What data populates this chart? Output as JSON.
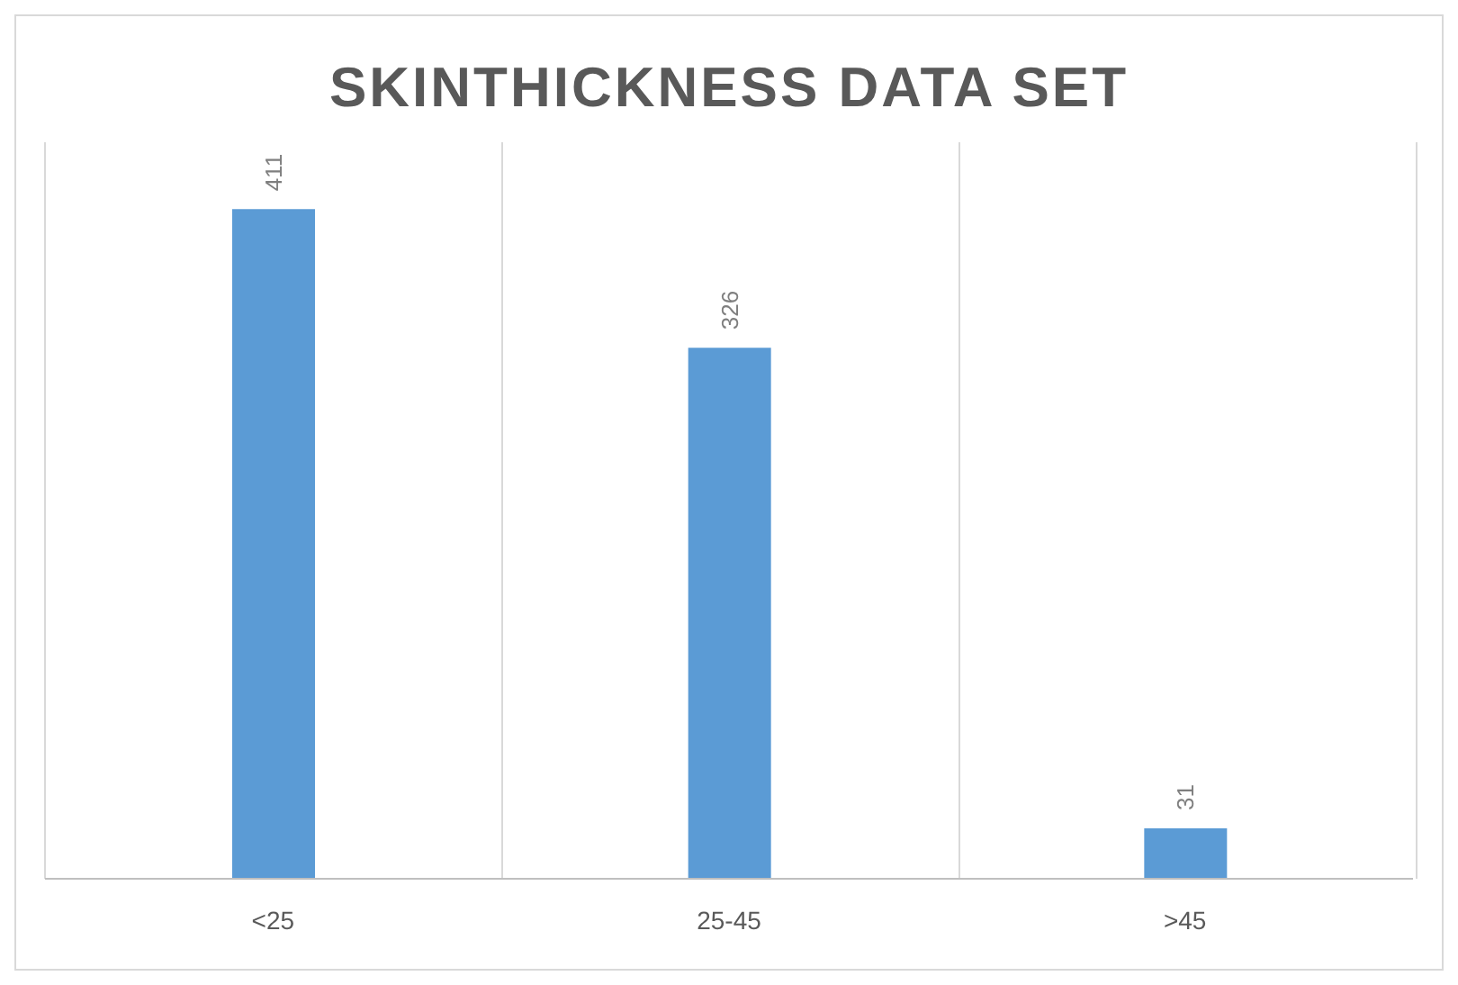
{
  "chart_data": {
    "type": "bar",
    "title": "SKINTHICKNESS DATA SET",
    "categories": [
      "<25",
      "25-45",
      ">45"
    ],
    "values": [
      411,
      326,
      31
    ],
    "color": "#5b9bd5",
    "data_labels": true,
    "grid": "x"
  }
}
